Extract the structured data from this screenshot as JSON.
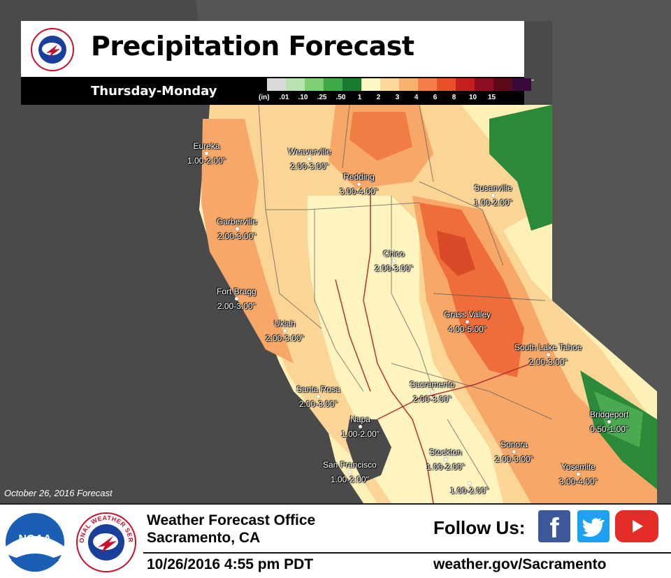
{
  "title": "Precipitation Forecast",
  "period": "Thursday-Monday",
  "legend": {
    "unit": "(in)",
    "values": [
      ".01",
      ".10",
      ".25",
      ".50",
      "1",
      "2",
      "3",
      "4",
      "6",
      "8",
      "10",
      "15"
    ],
    "colors": [
      "#d9d9d9",
      "#b8e2b0",
      "#7fcf77",
      "#3fa846",
      "#1a7a30",
      "#fdf7c4",
      "#fdd9a0",
      "#f9b171",
      "#f57f4a",
      "#e84f2a",
      "#c41e1e",
      "#8e1020",
      "#5c0a1a",
      "#3a0a3a"
    ],
    "overflow_mark": "\""
  },
  "forecast_date": "October 26, 2016 Forecast",
  "cities": [
    {
      "name": "Eureka",
      "amount": "1.00-2.00\""
    },
    {
      "name": "Weaverville",
      "amount": "2.00-3.00\""
    },
    {
      "name": "Redding",
      "amount": "3.00-4.00\""
    },
    {
      "name": "Susanville",
      "amount": "1.00-2.00\""
    },
    {
      "name": "Garberville",
      "amount": "2.00-3.00\""
    },
    {
      "name": "Chico",
      "amount": "2.00-3.00\""
    },
    {
      "name": "Fort Bragg",
      "amount": "2.00-3.00\""
    },
    {
      "name": "Grass Valley",
      "amount": "4.00-5.00\""
    },
    {
      "name": "Ukiah",
      "amount": "2.00-3.00\""
    },
    {
      "name": "South Lake Tahoe",
      "amount": "2.00-3.00\""
    },
    {
      "name": "Santa Rosa",
      "amount": "2.00-3.00\""
    },
    {
      "name": "Sacramento",
      "amount": "2.00-3.00\""
    },
    {
      "name": "Bridgeport",
      "amount": "0.50-1.00\""
    },
    {
      "name": "Napa",
      "amount": "1.00-2.00\""
    },
    {
      "name": "Sonora",
      "amount": "2.00-3.00\""
    },
    {
      "name": "Stockton",
      "amount": "1.00-2.00\""
    },
    {
      "name": "Yosemite",
      "amount": "3.00-4.00\""
    },
    {
      "name": "San Francisco",
      "amount": "1.00-2.00\""
    },
    {
      "name": "",
      "amount": "1.00-2.00\""
    }
  ],
  "footer": {
    "office_line1": "Weather Forecast Office",
    "office_line2": "Sacramento, CA",
    "datetime": "10/26/2016  4:55 pm PDT",
    "follow": "Follow Us:",
    "website": "weather.gov/Sacramento",
    "noaa_text": "NOAA",
    "nws_ring_text": "NATIONAL WEATHER SERVICE"
  },
  "social": [
    {
      "name": "facebook",
      "icon": "facebook-icon"
    },
    {
      "name": "twitter",
      "icon": "twitter-icon"
    },
    {
      "name": "youtube",
      "icon": "youtube-icon"
    }
  ]
}
